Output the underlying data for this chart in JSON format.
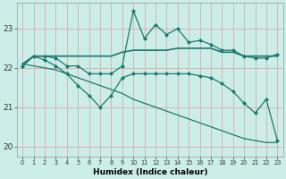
{
  "xlabel": "Humidex (Indice chaleur)",
  "bg_color": "#cceee8",
  "grid_color": "#ddaaaa",
  "line_color": "#1a7a6e",
  "xlim": [
    -0.5,
    23.5
  ],
  "ylim": [
    19.75,
    23.65
  ],
  "yticks": [
    20,
    21,
    22,
    23
  ],
  "xticks": [
    0,
    1,
    2,
    3,
    4,
    5,
    6,
    7,
    8,
    9,
    10,
    11,
    12,
    13,
    14,
    15,
    16,
    17,
    18,
    19,
    20,
    21,
    22,
    23
  ],
  "series": [
    {
      "x": [
        0,
        1,
        2,
        3,
        4,
        5,
        6,
        7,
        8,
        9,
        10,
        11,
        12,
        13,
        14,
        15,
        16,
        17,
        18,
        19,
        20,
        21,
        22,
        23
      ],
      "y": [
        22.05,
        22.3,
        22.3,
        22.25,
        22.05,
        22.05,
        21.85,
        21.85,
        21.85,
        22.05,
        23.45,
        22.75,
        23.1,
        22.85,
        23.0,
        22.65,
        22.7,
        22.6,
        22.45,
        22.45,
        22.3,
        22.25,
        22.25,
        22.35
      ],
      "marker": "D",
      "markersize": 2.0,
      "linewidth": 0.9
    },
    {
      "x": [
        0,
        1,
        2,
        3,
        4,
        5,
        6,
        7,
        8,
        9,
        10,
        11,
        12,
        13,
        14,
        15,
        16,
        17,
        18,
        19,
        20,
        21,
        22,
        23
      ],
      "y": [
        22.1,
        22.3,
        22.3,
        22.3,
        22.3,
        22.3,
        22.3,
        22.3,
        22.3,
        22.4,
        22.45,
        22.45,
        22.45,
        22.45,
        22.5,
        22.5,
        22.5,
        22.5,
        22.4,
        22.4,
        22.3,
        22.3,
        22.3,
        22.3
      ],
      "marker": "",
      "markersize": 0,
      "linewidth": 1.2
    },
    {
      "x": [
        0,
        1,
        2,
        3,
        4,
        5,
        6,
        7,
        8,
        9,
        10,
        11,
        12,
        13,
        14,
        15,
        16,
        17,
        18,
        19,
        20,
        21,
        22,
        23
      ],
      "y": [
        22.1,
        22.05,
        22.0,
        21.95,
        21.85,
        21.75,
        21.65,
        21.55,
        21.45,
        21.35,
        21.2,
        21.1,
        21.0,
        20.9,
        20.8,
        20.7,
        20.6,
        20.5,
        20.4,
        20.3,
        20.2,
        20.15,
        20.1,
        20.1
      ],
      "marker": "",
      "markersize": 0,
      "linewidth": 0.9
    },
    {
      "x": [
        0,
        1,
        2,
        3,
        4,
        5,
        6,
        7,
        8,
        9,
        10,
        11,
        12,
        13,
        14,
        15,
        16,
        17,
        18,
        19,
        20,
        21,
        22,
        23
      ],
      "y": [
        22.05,
        22.3,
        22.2,
        22.05,
        21.85,
        21.55,
        21.3,
        21.0,
        21.3,
        21.75,
        21.85,
        21.85,
        21.85,
        21.85,
        21.85,
        21.85,
        21.8,
        21.75,
        21.6,
        21.4,
        21.1,
        20.85,
        21.2,
        20.15
      ],
      "marker": "D",
      "markersize": 2.0,
      "linewidth": 0.9
    }
  ]
}
